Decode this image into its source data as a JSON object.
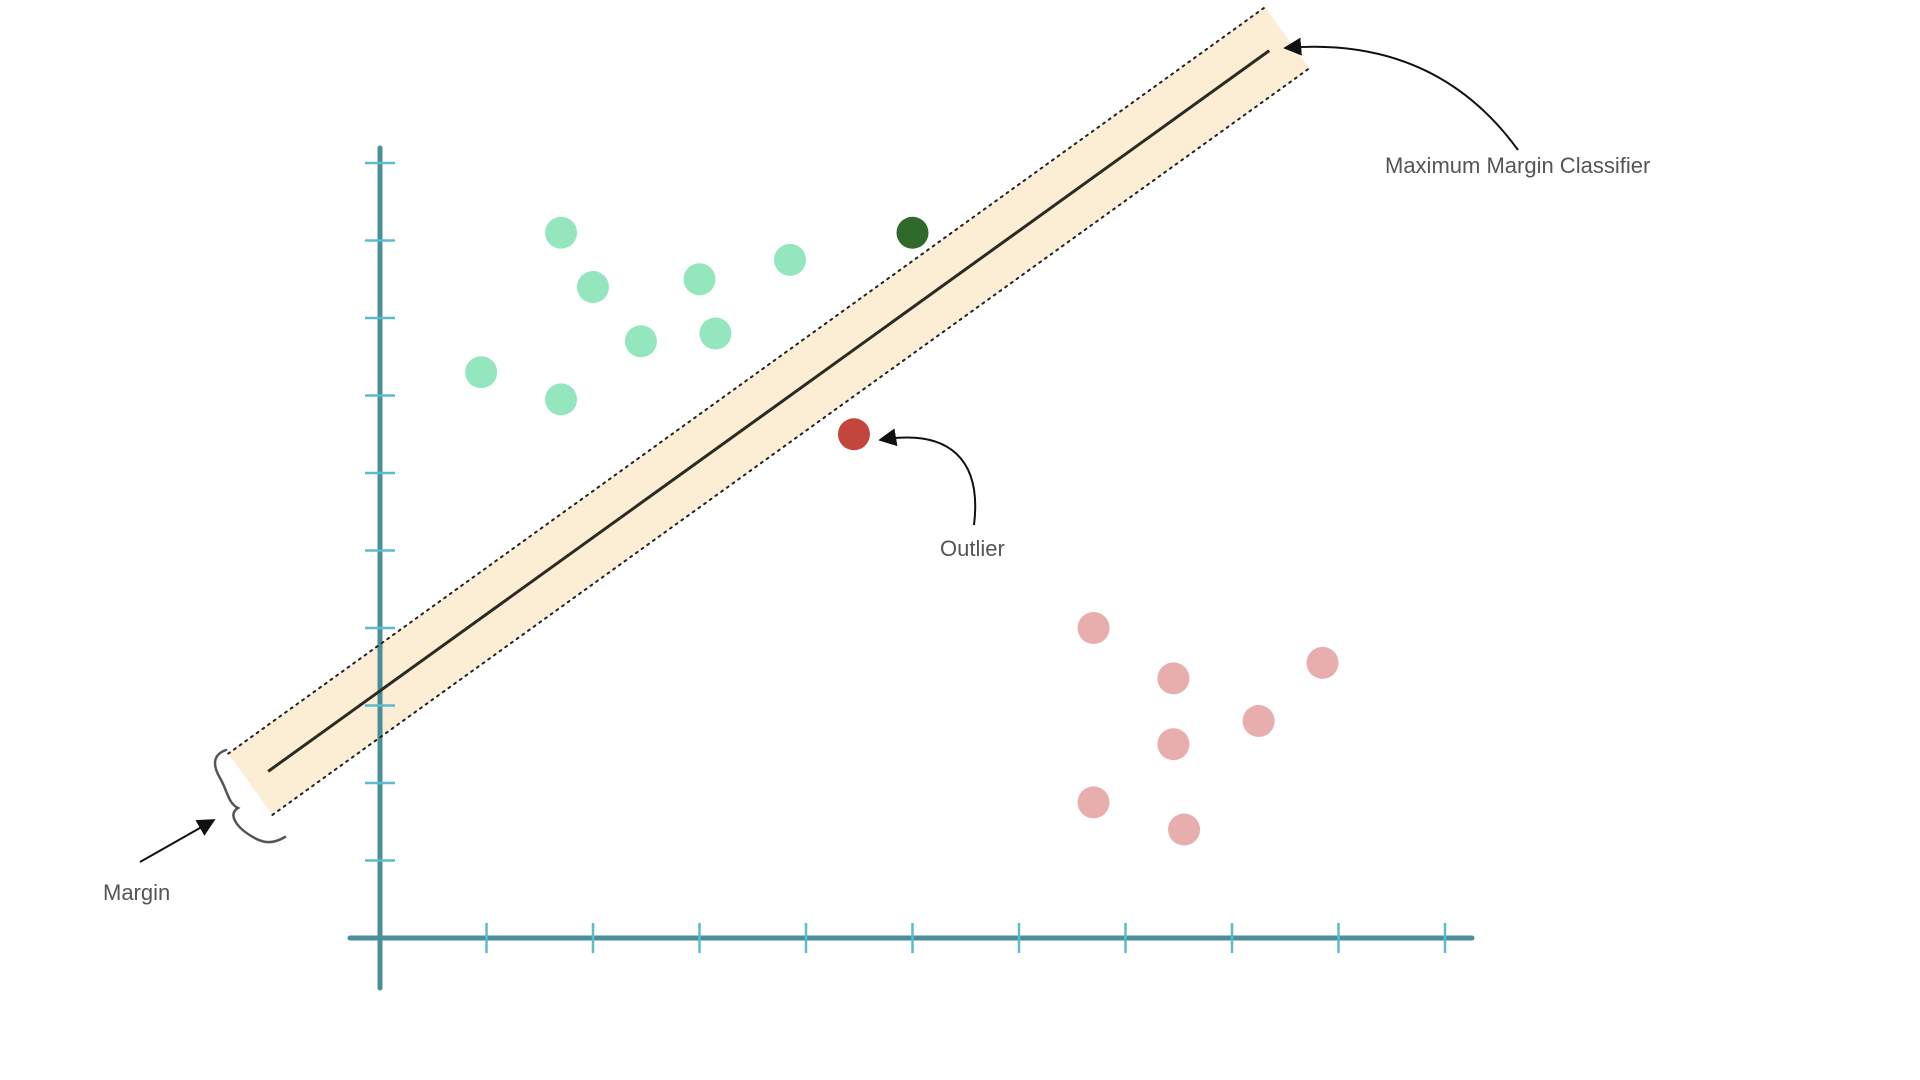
{
  "labels": {
    "classifier": "Maximum Margin Classifier",
    "outlier": "Outlier",
    "margin": "Margin"
  },
  "colors": {
    "axis": "#4a8f99",
    "tick": "#5bbccb",
    "band": "#fcebd0",
    "line": "#2b2b22",
    "class_a": "#93e6be",
    "class_b": "#e8adad",
    "support_vector": "#2f6a2c",
    "outlier": "#c3463c",
    "text": "#555555"
  },
  "classes": {
    "a": {
      "color_key": "class_a",
      "points": [
        [
          1.7,
          9.1
        ],
        [
          2.0,
          8.4
        ],
        [
          3.0,
          8.5
        ],
        [
          3.85,
          8.75
        ],
        [
          2.45,
          7.7
        ],
        [
          3.15,
          7.8
        ],
        [
          0.95,
          7.3
        ],
        [
          1.7,
          6.95
        ]
      ]
    },
    "b": {
      "color_key": "class_b",
      "points": [
        [
          6.7,
          4.0
        ],
        [
          7.45,
          3.35
        ],
        [
          8.85,
          3.55
        ],
        [
          8.25,
          2.8
        ],
        [
          7.45,
          2.5
        ],
        [
          6.7,
          1.75
        ],
        [
          7.55,
          1.4
        ]
      ]
    }
  },
  "support_vector": [
    5.0,
    9.1
  ],
  "outlier": [
    4.45,
    6.5
  ],
  "classifier_line": {
    "from": [
      -1.05,
      2.15
    ],
    "to": [
      8.35,
      11.45
    ]
  },
  "margin_width": 1.2,
  "axes": {
    "x_ticks": [
      1,
      2,
      3,
      4,
      5,
      6,
      7,
      8,
      9,
      10
    ],
    "y_ticks": [
      1,
      2,
      3,
      4,
      5,
      6,
      7,
      8,
      9,
      10
    ]
  }
}
